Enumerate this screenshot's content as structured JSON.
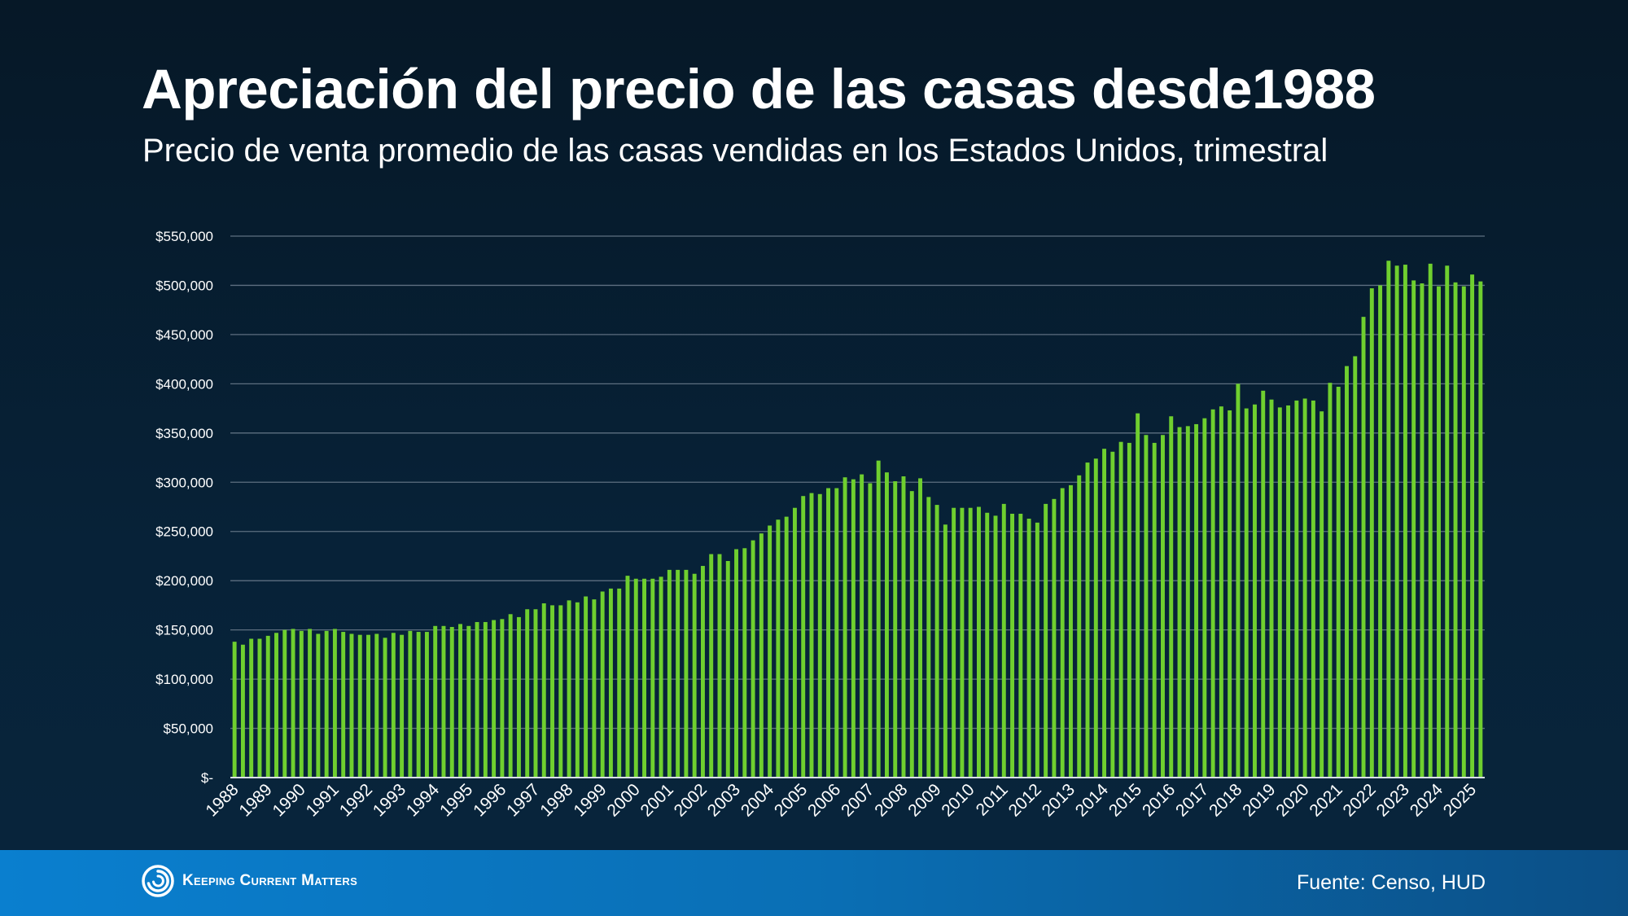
{
  "header": {
    "title": "Apreciación del precio de las casas desde1988",
    "subtitle": "Precio de venta promedio de las casas vendidas en los Estados Unidos, trimestral"
  },
  "footer": {
    "brand": "Keeping Current Matters",
    "source": "Fuente: Censo, HUD"
  },
  "colors": {
    "bar": "#6fcf2f",
    "grid": "#5d6f80",
    "text": "#ffffff"
  },
  "chart_data": {
    "type": "bar",
    "title": "Apreciación del precio de las casas desde1988",
    "subtitle": "Precio de venta promedio de las casas vendidas en los Estados Unidos, trimestral",
    "xlabel": "",
    "ylabel": "",
    "ylim": [
      0,
      550000
    ],
    "y_ticks": [
      0,
      50000,
      100000,
      150000,
      200000,
      250000,
      300000,
      350000,
      400000,
      450000,
      500000,
      550000
    ],
    "y_tick_labels": [
      "$-",
      "$50,000",
      "$100,000",
      "$150,000",
      "$200,000",
      "$250,000",
      "$300,000",
      "$350,000",
      "$400,000",
      "$450,000",
      "$500,000",
      "$550,000"
    ],
    "grid": true,
    "x_tick_labels": [
      "1988",
      "1989",
      "1990",
      "1991",
      "1992",
      "1993",
      "1994",
      "1995",
      "1996",
      "1997",
      "1998",
      "1999",
      "2000",
      "2001",
      "2002",
      "2003",
      "2004",
      "2005",
      "2006",
      "2007",
      "2008",
      "2009",
      "2010",
      "2011",
      "2012",
      "2013",
      "2014",
      "2015",
      "2016",
      "2017",
      "2018",
      "2019",
      "2020",
      "2021",
      "2022",
      "2023",
      "2024",
      "2025"
    ],
    "series": [
      {
        "values": [
          138000,
          135000,
          141000,
          141000,
          144000,
          147000,
          150000,
          151000,
          149000,
          151000,
          146000,
          149000,
          151000,
          148000,
          146000,
          145000,
          145000,
          146000,
          142000,
          147000,
          145000,
          149000,
          148000,
          148000,
          154000,
          154000,
          153000,
          156000,
          154000,
          158000,
          158000,
          160000,
          161000,
          166000,
          163000,
          171000,
          171000,
          177000,
          175000,
          175000,
          180000,
          178000,
          184000,
          181000,
          189000,
          192000,
          192000,
          205000,
          202000,
          202000,
          202000,
          204000,
          211000,
          211000,
          211000,
          207000,
          215000,
          227000,
          227000,
          220000,
          232000,
          233000,
          241000,
          248000,
          256000,
          262000,
          265000,
          274000,
          286000,
          289000,
          288000,
          294000,
          294000,
          305000,
          303000,
          308000,
          299000,
          322000,
          310000,
          301000,
          306000,
          291000,
          304000,
          285000,
          277000,
          257000,
          274000,
          274000,
          274000,
          275000,
          269000,
          266000,
          278000,
          268000,
          268000,
          263000,
          259000,
          278000,
          283000,
          294000,
          297000,
          307000,
          320000,
          324000,
          334000,
          331000,
          341000,
          340000,
          370000,
          348000,
          340000,
          348000,
          367000,
          356000,
          357000,
          359000,
          365000,
          374000,
          377000,
          373000,
          400000,
          375000,
          379000,
          393000,
          384000,
          376000,
          378000,
          383000,
          385000,
          383000,
          372000,
          401000,
          397000,
          418000,
          428000,
          468000,
          497000,
          500000,
          525000,
          520000,
          521000,
          505000,
          502000,
          522000,
          499000,
          520000,
          503000,
          499000,
          511000,
          504000
        ]
      }
    ]
  }
}
